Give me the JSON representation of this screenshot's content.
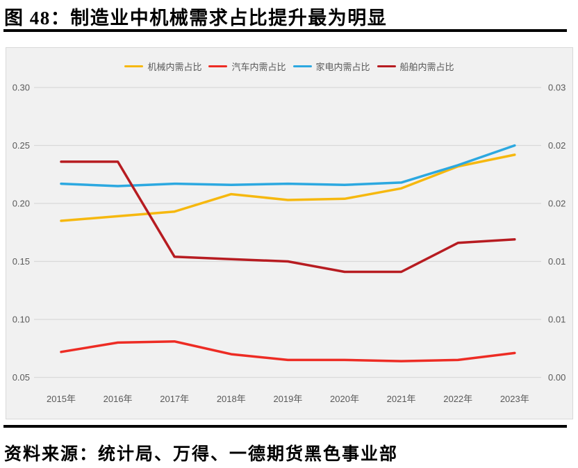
{
  "figure": {
    "title": "图 48：制造业中机械需求占比提升最为明显",
    "source": "资料来源：统计局、万得、一德期货黑色事业部"
  },
  "chart_data": {
    "type": "line",
    "categories": [
      "2015年",
      "2016年",
      "2017年",
      "2018年",
      "2019年",
      "2020年",
      "2021年",
      "2022年",
      "2023年"
    ],
    "series": [
      {
        "name": "机械内需占比",
        "color": "#F6B80F",
        "values": [
          0.185,
          0.189,
          0.193,
          0.208,
          0.203,
          0.204,
          0.213,
          0.232,
          0.242
        ]
      },
      {
        "name": "汽车内需占比",
        "color": "#ED2C24",
        "values": [
          0.072,
          0.08,
          0.081,
          0.07,
          0.065,
          0.065,
          0.064,
          0.065,
          0.071
        ]
      },
      {
        "name": "家电内需占比",
        "color": "#2CA8E0",
        "values": [
          0.217,
          0.215,
          0.217,
          0.216,
          0.217,
          0.216,
          0.218,
          0.233,
          0.25
        ]
      },
      {
        "name": "船舶内需占比",
        "color": "#B71C21",
        "values": [
          0.236,
          0.236,
          0.154,
          0.152,
          0.15,
          0.141,
          0.141,
          0.166,
          0.169
        ]
      }
    ],
    "left_axis": {
      "tick_labels_top_to_bottom": [
        "0.30",
        "0.25",
        "0.20",
        "0.15",
        "0.10",
        "0.05"
      ],
      "range": [
        0.05,
        0.3
      ]
    },
    "right_axis": {
      "tick_labels_top_to_bottom": [
        "0.03",
        "0.02",
        "0.02",
        "0.01",
        "0.01",
        "0.00"
      ]
    },
    "legend_position": "top-center",
    "grid": true,
    "plot_background": "#f1f1f1",
    "gridline_color": "#d9d9d9",
    "tick_text_color": "#595959"
  }
}
